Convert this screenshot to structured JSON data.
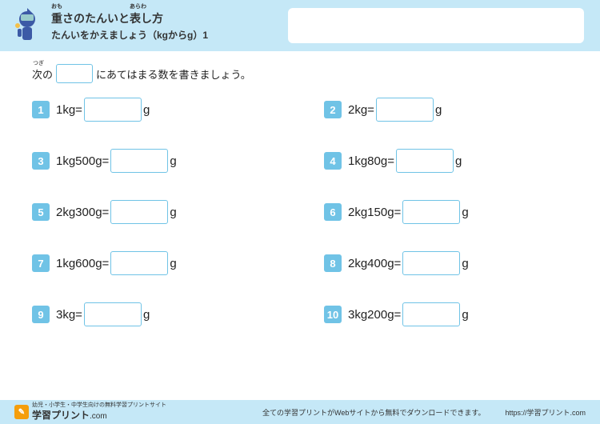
{
  "header": {
    "title_main": "重さのたんいと表し方",
    "title_sub": "たんいをかえましょう（kgからg）1",
    "ruby_omo": "おも",
    "ruby_arawa": "あらわ"
  },
  "instruction": {
    "ruby_tsugi": "つぎ",
    "pre": "次の",
    "post": "にあてはまる数を書きましょう。"
  },
  "problems": [
    {
      "n": "1",
      "left": "1kg=",
      "unit": "g"
    },
    {
      "n": "2",
      "left": "2kg=",
      "unit": "g"
    },
    {
      "n": "3",
      "left": "1kg500g=",
      "unit": "g"
    },
    {
      "n": "4",
      "left": "1kg80g=",
      "unit": "g"
    },
    {
      "n": "5",
      "left": "2kg300g=",
      "unit": "g"
    },
    {
      "n": "6",
      "left": "2kg150g=",
      "unit": "g"
    },
    {
      "n": "7",
      "left": "1kg600g=",
      "unit": "g"
    },
    {
      "n": "8",
      "left": "2kg400g=",
      "unit": "g"
    },
    {
      "n": "9",
      "left": "3kg=",
      "unit": "g"
    },
    {
      "n": "10",
      "left": "3kg200g=",
      "unit": "g"
    }
  ],
  "footer": {
    "tagline": "幼児・小学生・中学生向けの無料学習プリントサイト",
    "brand": "学習プリント",
    "brand_suffix": ".com",
    "center": "全ての学習プリントがWebサイトから無料でダウンロードできます。",
    "url": "https://学習プリント.com"
  },
  "colors": {
    "header_bg": "#c5e8f7",
    "accent": "#70c3e6",
    "logo": "#f59e0b"
  }
}
